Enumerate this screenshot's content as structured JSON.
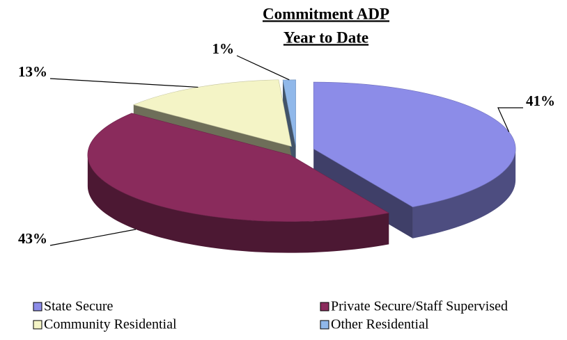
{
  "chart_data": {
    "type": "pie",
    "title": "Commitment ADP",
    "subtitle": "Year to Date",
    "categories": [
      "State Secure",
      "Private Secure/Staff Supervised",
      "Community Residential",
      "Other Residential"
    ],
    "values": [
      41,
      43,
      13,
      1
    ],
    "value_labels": [
      "41%",
      "43%",
      "13%",
      "1%"
    ],
    "colors": [
      "#8c8ce8",
      "#8a2b5c",
      "#f4f4c6",
      "#90b8ea"
    ],
    "legend": "bottom"
  }
}
